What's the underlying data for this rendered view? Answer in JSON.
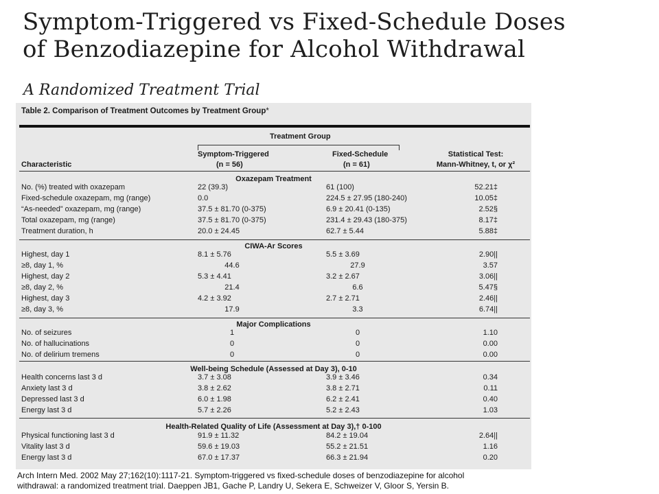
{
  "slide": {
    "title_line1": "Symptom-Triggered vs Fixed-Schedule Doses",
    "title_line2": "of Benzodiazepine for Alcohol Withdrawal",
    "subtitle": "A Randomized Treatment Trial"
  },
  "table": {
    "title": "Table 2. Comparison of Treatment Outcomes by Treatment Group",
    "title_mark": "*",
    "group_header": "Treatment Group",
    "columns": {
      "characteristic": "Characteristic",
      "symptom_name": "Symptom-Triggered",
      "symptom_n": "(n = 56)",
      "fixed_name": "Fixed-Schedule",
      "fixed_n": "(n = 61)",
      "test_line1": "Statistical Test:",
      "test_line2": "Mann-Whitney, t, or χ²"
    },
    "sections": [
      "Oxazepam Treatment",
      "CIWA-Ar Scores",
      "Major Complications",
      "Well-being Schedule (Assessed at Day 3), 0-10",
      "Health-Related Quality of Life (Assessment at Day 3),† 0-100"
    ],
    "rows": [
      [
        "No. (%) treated with oxazepam",
        "22 (39.3)",
        "61 (100)",
        "52.21‡"
      ],
      [
        "Fixed-schedule oxazepam, mg (range)",
        "0.0",
        "224.5 ± 27.95 (180-240)",
        "10.05‡"
      ],
      [
        "“As-needed” oxazepam, mg (range)",
        "37.5 ± 81.70 (0-375)",
        "6.9 ± 20.41 (0-135)",
        "2.52§"
      ],
      [
        "Total oxazepam, mg (range)",
        "37.5 ± 81.70 (0-375)",
        "231.4 ± 29.43 (180-375)",
        "8.17‡"
      ],
      [
        "Treatment duration, h",
        "20.0 ± 24.45",
        "62.7 ± 5.44",
        "5.88‡"
      ],
      [
        "Highest, day 1",
        "8.1 ± 5.76",
        "5.5 ± 3.69",
        "2.90||"
      ],
      [
        "≥8, day 1, %",
        "44.6",
        "27.9",
        "3.57"
      ],
      [
        "Highest, day 2",
        "5.3 ± 4.41",
        "3.2 ± 2.67",
        "3.06||"
      ],
      [
        "≥8, day 2, %",
        "21.4",
        "6.6",
        "5.47§"
      ],
      [
        "Highest, day 3",
        "4.2 ± 3.92",
        "2.7 ± 2.71",
        "2.46||"
      ],
      [
        "≥8, day 3, %",
        "17.9",
        "3.3",
        "6.74||"
      ],
      [
        "No. of seizures",
        "1",
        "0",
        "1.10"
      ],
      [
        "No. of hallucinations",
        "0",
        "0",
        "0.00"
      ],
      [
        "No. of delirium tremens",
        "0",
        "0",
        "0.00"
      ],
      [
        "Health concerns last 3 d",
        "3.7 ± 3.08",
        "3.9 ± 3.46",
        "0.34"
      ],
      [
        "Anxiety last 3 d",
        "3.8 ± 2.62",
        "3.8 ± 2.71",
        "0.11"
      ],
      [
        "Depressed last 3 d",
        "6.0 ± 1.98",
        "6.2 ± 2.41",
        "0.40"
      ],
      [
        "Energy last 3 d",
        "5.7 ± 2.26",
        "5.2 ± 2.43",
        "1.03"
      ],
      [
        "Physical functioning last 3 d",
        "91.9 ± 11.32",
        "84.2 ± 19.04",
        "2.64||"
      ],
      [
        "Vitality last 3 d",
        "59.6 ± 19.03",
        "55.2 ± 21.51",
        "1.16"
      ],
      [
        "Energy last 3 d",
        "67.0 ± 17.37",
        "66.3 ± 21.94",
        "0.20"
      ]
    ]
  },
  "caption": {
    "line1": "Arch Intern Med. 2002 May 27;162(10):1117-21.  Symptom-triggered vs fixed-schedule doses of benzodiazepine for alcohol",
    "line2": "withdrawal: a randomized treatment trial. Daeppen JB1, Gache P, Landry U, Sekera E, Schweizer V, Gloor S, Yersin B."
  }
}
